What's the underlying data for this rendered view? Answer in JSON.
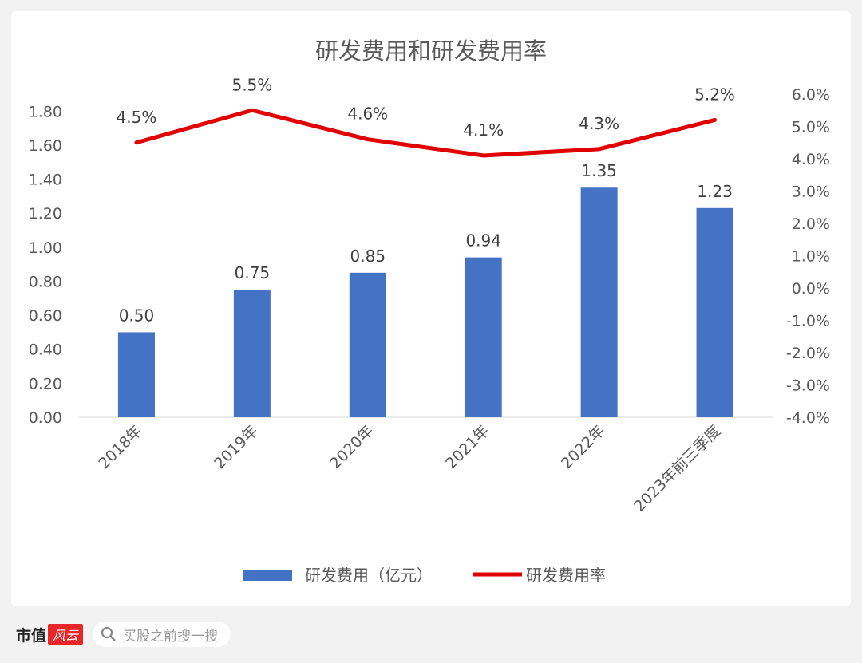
{
  "chart_data": {
    "type": "bar+line",
    "title": "研发费用和研发费用率",
    "categories": [
      "2018年",
      "2019年",
      "2020年",
      "2021年",
      "2022年",
      "2023年前三季度"
    ],
    "series": [
      {
        "name": "研发费用（亿元）",
        "type": "bar",
        "axis": "left",
        "color": "#4472c4",
        "values": [
          0.5,
          0.75,
          0.85,
          0.94,
          1.35,
          1.23
        ],
        "labels": [
          "0.50",
          "0.75",
          "0.85",
          "0.94",
          "1.35",
          "1.23"
        ]
      },
      {
        "name": "研发费用率",
        "type": "line",
        "axis": "right",
        "color": "#e00000",
        "values": [
          4.5,
          5.5,
          4.6,
          4.1,
          4.3,
          5.2
        ],
        "labels": [
          "4.5%",
          "5.5%",
          "4.6%",
          "4.1%",
          "4.3%",
          "5.2%"
        ]
      }
    ],
    "left_axis": {
      "range": [
        0,
        1.9
      ],
      "ticks": [
        "0.00",
        "0.20",
        "0.40",
        "0.60",
        "0.80",
        "1.00",
        "1.20",
        "1.40",
        "1.60",
        "1.80"
      ],
      "tick_values": [
        0,
        0.2,
        0.4,
        0.6,
        0.8,
        1.0,
        1.2,
        1.4,
        1.6,
        1.8
      ]
    },
    "right_axis": {
      "range": [
        -4,
        6
      ],
      "ticks": [
        "-4.0%",
        "-3.0%",
        "-2.0%",
        "-1.0%",
        "0.0%",
        "1.0%",
        "2.0%",
        "3.0%",
        "4.0%",
        "5.0%",
        "6.0%"
      ],
      "tick_values": [
        -4,
        -3,
        -2,
        -1,
        0,
        1,
        2,
        3,
        4,
        5,
        6
      ]
    },
    "legend": "bottom",
    "grid": false
  },
  "footer": {
    "logo_main": "市值",
    "logo_accent": "风云",
    "search_placeholder": "买股之前搜一搜"
  }
}
